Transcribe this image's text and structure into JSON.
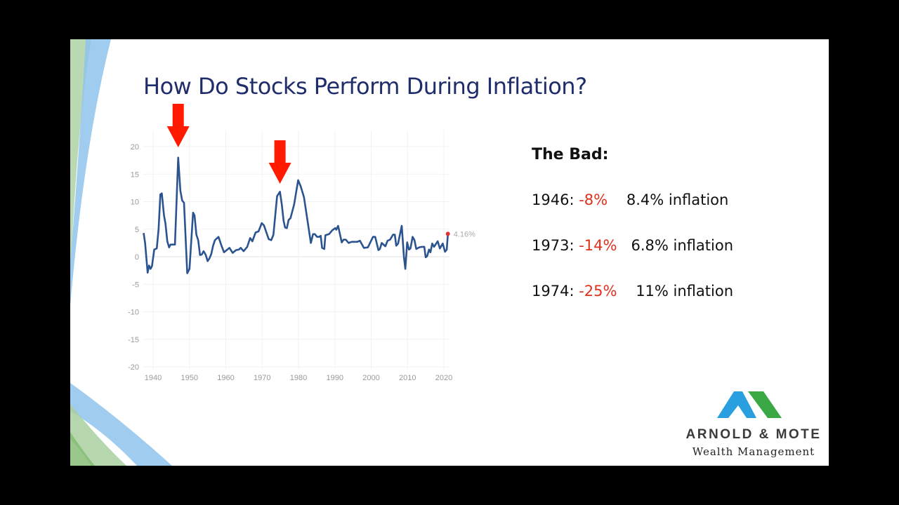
{
  "slide": {
    "title": "How Do Stocks Perform During Inflation?",
    "bad": {
      "heading": "The Bad:",
      "rows": [
        {
          "year": "1946",
          "return": "-8%",
          "inflation": "8.4% inflation"
        },
        {
          "year": "1973",
          "return": "-14%",
          "inflation": "6.8% inflation"
        },
        {
          "year": "1974",
          "return": "-25%",
          "inflation": "11% inflation"
        }
      ]
    },
    "logo": {
      "brand": "ARNOLD & MOTE",
      "subtitle": "Wealth Management",
      "colors": {
        "left": "#2a9fe0",
        "right": "#3aa845"
      }
    }
  },
  "chart_data": {
    "type": "line",
    "title": "",
    "xlabel": "",
    "ylabel": "",
    "xlim": [
      1937,
      2025
    ],
    "ylim": [
      -20,
      20
    ],
    "x_ticks": [
      "1940",
      "1950",
      "1960",
      "1970",
      "1980",
      "1990",
      "2000",
      "2010",
      "2020"
    ],
    "y_ticks": [
      "20",
      "15",
      "10",
      "5",
      "0",
      "-5",
      "-10",
      "-15",
      "-20"
    ],
    "grid": true,
    "line_color": "#2b5390",
    "last_value_label": "4.16%",
    "last_point_color": "#e03030",
    "arrow_color": "#ff1a00",
    "arrows_at_years": [
      1946.9,
      1974.9
    ],
    "series": [
      {
        "x": [
          1937.4,
          1937.8,
          1938.5,
          1938.9,
          1939.3,
          1939.7,
          1940.3,
          1941.0,
          1941.5,
          1942.0,
          1942.4,
          1943.0,
          1943.4,
          1943.9,
          1944.4,
          1944.8,
          1946.0,
          1946.9,
          1947.5,
          1948.0,
          1948.5,
          1949.4,
          1950.0,
          1951.0,
          1951.4,
          1951.9,
          1952.4,
          1952.9,
          1953.4,
          1953.9,
          1954.5,
          1955.0,
          1955.5,
          1956.0,
          1956.5,
          1957.0,
          1958.0,
          1958.7,
          1959.5,
          1961.0,
          1961.9,
          1962.8,
          1963.6,
          1964.1,
          1964.9,
          1965.9,
          1966.7,
          1967.3,
          1968.2,
          1969.0,
          1969.9,
          1970.5,
          1971.8,
          1972.5,
          1973.1,
          1974.1,
          1974.9,
          1975.4,
          1975.9,
          1976.3,
          1976.8,
          1977.3,
          1977.8,
          1978.8,
          1979.9,
          1980.6,
          1981.5,
          1982.5,
          1983.4,
          1984.0,
          1984.5,
          1985.1,
          1985.7,
          1986.1,
          1986.5,
          1987.1,
          1987.4,
          1988.4,
          1989.3,
          1990.1,
          1990.4,
          1990.9,
          1991.9,
          1992.4,
          1993.0,
          1993.8,
          1994.6,
          1996.2,
          1996.9,
          1998.0,
          1999.1,
          2000.5,
          2001.1,
          2002.0,
          2002.4,
          2002.9,
          2003.9,
          2004.5,
          2005.2,
          2006.0,
          2006.5,
          2006.9,
          2007.4,
          2008.4,
          2009.0,
          2009.4,
          2009.9,
          2010.4,
          2010.8,
          2011.4,
          2011.9,
          2012.4,
          2013.2,
          2014.0,
          2014.6,
          2015.0,
          2015.4,
          2015.9,
          2016.3,
          2016.8,
          2017.3,
          2018.3,
          2018.9,
          2019.7,
          2020.3,
          2020.8,
          2021.1
        ],
        "y": [
          4.3,
          2.5,
          -2.9,
          -1.6,
          -2.2,
          -1.7,
          1.3,
          1.5,
          5,
          11.3,
          11.5,
          7.5,
          6,
          2.8,
          1.7,
          2.2,
          2.2,
          18,
          12,
          10.2,
          9.8,
          -3,
          -2.2,
          8,
          7.5,
          4,
          3,
          0.3,
          0.4,
          1,
          0.3,
          -0.8,
          -0.3,
          0.5,
          2,
          3,
          3.6,
          2.2,
          0.8,
          1.6,
          0.7,
          1.2,
          1.3,
          1.6,
          1.0,
          1.8,
          3.4,
          2.8,
          4.4,
          4.6,
          6.1,
          5.7,
          3.2,
          3.0,
          4,
          11,
          11.8,
          9.5,
          6.5,
          5.3,
          5.2,
          6.7,
          7,
          9.5,
          13.9,
          12.8,
          10.8,
          6.5,
          2.5,
          4.1,
          4.1,
          3.6,
          3.6,
          3.8,
          1.6,
          1.4,
          3.9,
          4.1,
          4.8,
          5.2,
          4.9,
          5.6,
          2.6,
          3.1,
          3.1,
          2.5,
          2.7,
          2.7,
          2.9,
          1.6,
          1.7,
          3.6,
          3.6,
          1.2,
          1.4,
          2.5,
          1.9,
          2.9,
          3.1,
          4.0,
          4.0,
          2.0,
          2.4,
          5.6,
          0,
          -2.2,
          2.6,
          1.3,
          1.5,
          3.6,
          3.0,
          1.4,
          1.7,
          1.8,
          1.8,
          -0.1,
          0.1,
          1.3,
          0.8,
          2.4,
          1.8,
          2.8,
          1.5,
          2.4,
          0.9,
          1.3,
          4.16
        ]
      }
    ]
  }
}
